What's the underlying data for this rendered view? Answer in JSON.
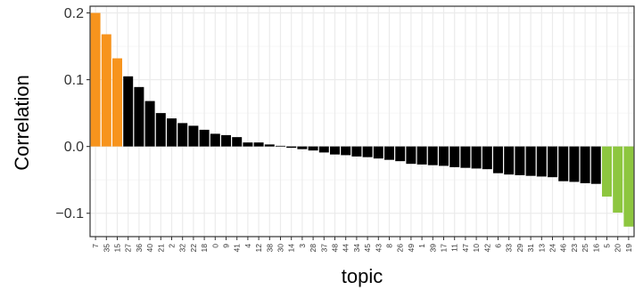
{
  "chart_data": {
    "type": "bar",
    "xlabel": "topic",
    "ylabel": "Correlation",
    "ylim": [
      -0.135,
      0.21
    ],
    "yticks": [
      -0.1,
      0.0,
      0.1,
      0.2
    ],
    "ytick_labels": [
      "−0.1",
      "0.0",
      "0.1",
      "0.2"
    ],
    "grid": true,
    "colors": {
      "positive_highlight": "#f7941d",
      "negative_highlight": "#8dc63f",
      "default": "#000000",
      "grid_major": "#ebebeb",
      "grid_minor": "#f5f5f5"
    },
    "categories": [
      "7",
      "35",
      "15",
      "27",
      "36",
      "40",
      "21",
      "2",
      "32",
      "22",
      "18",
      "0",
      "9",
      "41",
      "4",
      "12",
      "38",
      "30",
      "14",
      "3",
      "28",
      "37",
      "48",
      "44",
      "34",
      "45",
      "43",
      "8",
      "26",
      "49",
      "1",
      "39",
      "17",
      "11",
      "47",
      "10",
      "42",
      "6",
      "33",
      "29",
      "31",
      "13",
      "24",
      "46",
      "23",
      "25",
      "16",
      "5",
      "20",
      "19"
    ],
    "values": [
      0.2,
      0.168,
      0.132,
      0.105,
      0.089,
      0.068,
      0.05,
      0.042,
      0.035,
      0.031,
      0.025,
      0.019,
      0.017,
      0.014,
      0.006,
      0.006,
      0.003,
      0.001,
      -0.002,
      -0.004,
      -0.006,
      -0.009,
      -0.012,
      -0.013,
      -0.015,
      -0.016,
      -0.018,
      -0.02,
      -0.022,
      -0.026,
      -0.027,
      -0.028,
      -0.029,
      -0.031,
      -0.032,
      -0.033,
      -0.034,
      -0.04,
      -0.042,
      -0.043,
      -0.044,
      -0.045,
      -0.046,
      -0.052,
      -0.053,
      -0.055,
      -0.056,
      -0.075,
      -0.099,
      -0.12
    ],
    "bar_colors": [
      "positive_highlight",
      "positive_highlight",
      "positive_highlight",
      "default",
      "default",
      "default",
      "default",
      "default",
      "default",
      "default",
      "default",
      "default",
      "default",
      "default",
      "default",
      "default",
      "default",
      "default",
      "default",
      "default",
      "default",
      "default",
      "default",
      "default",
      "default",
      "default",
      "default",
      "default",
      "default",
      "default",
      "default",
      "default",
      "default",
      "default",
      "default",
      "default",
      "default",
      "default",
      "default",
      "default",
      "default",
      "default",
      "default",
      "default",
      "default",
      "default",
      "default",
      "negative_highlight",
      "negative_highlight",
      "negative_highlight"
    ]
  }
}
